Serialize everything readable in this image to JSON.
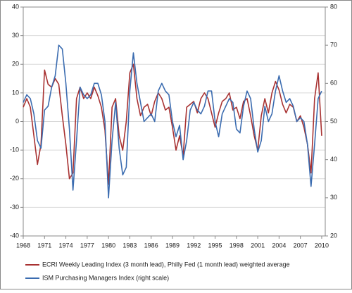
{
  "chart_data": {
    "type": "line",
    "x": [
      1968,
      1968.5,
      1969,
      1969.5,
      1970,
      1970.5,
      1971,
      1971.5,
      1972,
      1972.5,
      1973,
      1973.5,
      1974,
      1974.5,
      1975,
      1975.5,
      1976,
      1976.5,
      1977,
      1977.5,
      1978,
      1978.5,
      1979,
      1979.5,
      1980,
      1980.5,
      1981,
      1981.5,
      1982,
      1982.5,
      1983,
      1983.5,
      1984,
      1984.5,
      1985,
      1985.5,
      1986,
      1986.5,
      1987,
      1987.5,
      1988,
      1988.5,
      1989,
      1989.5,
      1990,
      1990.5,
      1991,
      1991.5,
      1992,
      1992.5,
      1993,
      1993.5,
      1994,
      1994.5,
      1995,
      1995.5,
      1996,
      1996.5,
      1997,
      1997.5,
      1998,
      1998.5,
      1999,
      1999.5,
      2000,
      2000.5,
      2001,
      2001.5,
      2002,
      2002.5,
      2003,
      2003.5,
      2004,
      2004.5,
      2005,
      2005.5,
      2006,
      2006.5,
      2007,
      2007.5,
      2008,
      2008.5,
      2009,
      2009.5,
      2010
    ],
    "series": [
      {
        "name": "ECRI Weekly Leading Index (3 month lead), Philly Fed (1 month lead) weighted average",
        "color": "#a83232",
        "axis": "y",
        "values": [
          5,
          8,
          5,
          -5,
          -15,
          -8,
          18,
          13,
          12,
          15,
          13,
          2,
          -8,
          -20,
          -18,
          8,
          12,
          8,
          10,
          8,
          12,
          9,
          5,
          -3,
          -22,
          5,
          8,
          -5,
          -10,
          0,
          17,
          20,
          8,
          2,
          5,
          6,
          2,
          7,
          10,
          8,
          4,
          5,
          -2,
          -10,
          -5,
          -12,
          5,
          6,
          7,
          3,
          8,
          10,
          8,
          3,
          -2,
          3,
          7,
          8,
          10,
          4,
          5,
          1,
          7,
          8,
          2,
          -5,
          -10,
          2,
          8,
          3,
          10,
          14,
          11,
          6,
          3,
          6,
          5,
          0,
          2,
          -2,
          -8,
          -18,
          8,
          17,
          -5
        ]
      },
      {
        "name": "ISM Purchasing Managers Index (right scale)",
        "color": "#3b6cb0",
        "axis": "y2",
        "values": [
          55,
          57,
          56,
          52,
          45,
          43,
          53,
          54,
          59,
          62,
          70,
          69,
          60,
          48,
          32,
          45,
          59,
          57,
          56,
          57,
          60,
          60,
          57,
          50,
          30,
          45,
          55,
          43,
          36,
          38,
          58,
          68,
          60,
          55,
          50,
          51,
          52,
          50,
          58,
          60,
          58,
          57,
          50,
          46,
          49,
          40,
          45,
          53,
          55,
          53,
          52,
          54,
          58,
          58,
          50,
          46,
          52,
          54,
          56,
          55,
          48,
          47,
          54,
          58,
          56,
          48,
          42,
          45,
          54,
          50,
          52,
          58,
          62,
          58,
          55,
          56,
          54,
          50,
          51,
          50,
          44,
          33,
          44,
          56,
          58
        ]
      }
    ],
    "xlim": [
      1968,
      2010.5
    ],
    "xticks": [
      1968,
      1971,
      1974,
      1977,
      1980,
      1983,
      1986,
      1989,
      1992,
      1995,
      1998,
      2001,
      2004,
      2007,
      2010
    ],
    "ylim": [
      -40,
      40
    ],
    "yticks": [
      -40,
      -30,
      -20,
      -10,
      0,
      10,
      20,
      30,
      40
    ],
    "y2lim": [
      20,
      80
    ],
    "y2ticks": [
      20,
      30,
      40,
      50,
      60,
      70,
      80
    ],
    "grid": true
  }
}
